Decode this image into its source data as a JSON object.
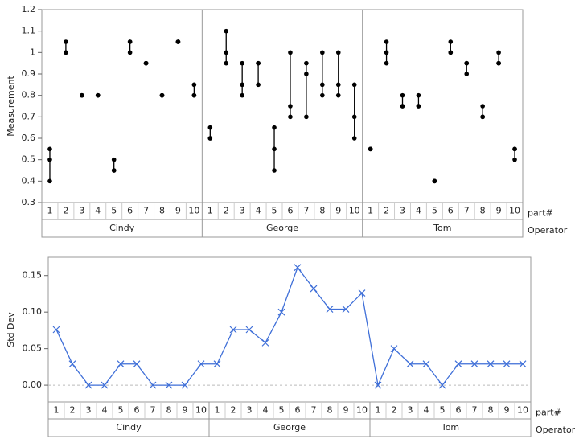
{
  "chart_data": [
    {
      "type": "variability",
      "y_label": "Measurement",
      "x_label": "part#",
      "group_label": "Operator",
      "levels": [
        "1",
        "2",
        "3",
        "4",
        "5",
        "6",
        "7",
        "8",
        "9",
        "10"
      ],
      "color": "#000000",
      "ylim": [
        0.3,
        1.2
      ],
      "yticks": [
        0.3,
        0.4,
        0.5,
        0.6,
        0.7,
        0.8,
        0.9,
        1,
        1.1,
        1.2
      ],
      "groups": [
        {
          "name": "Cindy",
          "values": [
            [
              0.4,
              0.5,
              0.55
            ],
            [
              1.0,
              1.0,
              1.05
            ],
            [
              0.8,
              0.8,
              0.8
            ],
            [
              0.8,
              0.8,
              0.8
            ],
            [
              0.45,
              0.5,
              0.45
            ],
            [
              1.0,
              1.05,
              1.05
            ],
            [
              0.95,
              0.95,
              0.95
            ],
            [
              0.8,
              0.8,
              0.8
            ],
            [
              1.05,
              1.05,
              1.05
            ],
            [
              0.8,
              0.85,
              0.8
            ]
          ]
        },
        {
          "name": "George",
          "values": [
            [
              0.6,
              0.65,
              0.6
            ],
            [
              0.95,
              1.0,
              1.1
            ],
            [
              0.8,
              0.85,
              0.95
            ],
            [
              0.85,
              0.95,
              0.95
            ],
            [
              0.45,
              0.55,
              0.65
            ],
            [
              0.7,
              0.75,
              1.0
            ],
            [
              0.7,
              0.9,
              0.95
            ],
            [
              0.8,
              0.85,
              1.0
            ],
            [
              0.8,
              0.85,
              1.0
            ],
            [
              0.6,
              0.7,
              0.85
            ]
          ]
        },
        {
          "name": "Tom",
          "values": [
            [
              0.55,
              0.55,
              0.55
            ],
            [
              0.95,
              1.0,
              1.05
            ],
            [
              0.75,
              0.75,
              0.8
            ],
            [
              0.75,
              0.8,
              0.75
            ],
            [
              0.4,
              0.4,
              0.4
            ],
            [
              1.0,
              1.05,
              1.0
            ],
            [
              0.9,
              0.95,
              0.95
            ],
            [
              0.7,
              0.75,
              0.7
            ],
            [
              0.95,
              1.0,
              0.95
            ],
            [
              0.5,
              0.55,
              0.55
            ]
          ]
        }
      ]
    },
    {
      "type": "line",
      "y_label": "Std Dev",
      "x_label": "part#",
      "group_label": "Operator",
      "levels": [
        "1",
        "2",
        "3",
        "4",
        "5",
        "6",
        "7",
        "8",
        "9",
        "10"
      ],
      "color": "#3f6fd8",
      "ylim": [
        -0.023,
        0.175
      ],
      "yticks": [
        {
          "value": 0,
          "label": "0.00"
        },
        {
          "value": 0.05,
          "label": "0.05"
        },
        {
          "value": 0.1,
          "label": "0.10"
        },
        {
          "value": 0.15,
          "label": "0.15"
        }
      ],
      "zero_line": true,
      "groups": [
        {
          "name": "Cindy",
          "values": [
            0.076,
            0.029,
            0,
            0,
            0.029,
            0.029,
            0,
            0,
            0,
            0.029
          ]
        },
        {
          "name": "George",
          "values": [
            0.029,
            0.076,
            0.076,
            0.058,
            0.1,
            0.161,
            0.132,
            0.104,
            0.104,
            0.126
          ]
        },
        {
          "name": "Tom",
          "values": [
            0,
            0.05,
            0.029,
            0.029,
            0,
            0.029,
            0.029,
            0.029,
            0.029,
            0.029
          ]
        }
      ]
    }
  ]
}
